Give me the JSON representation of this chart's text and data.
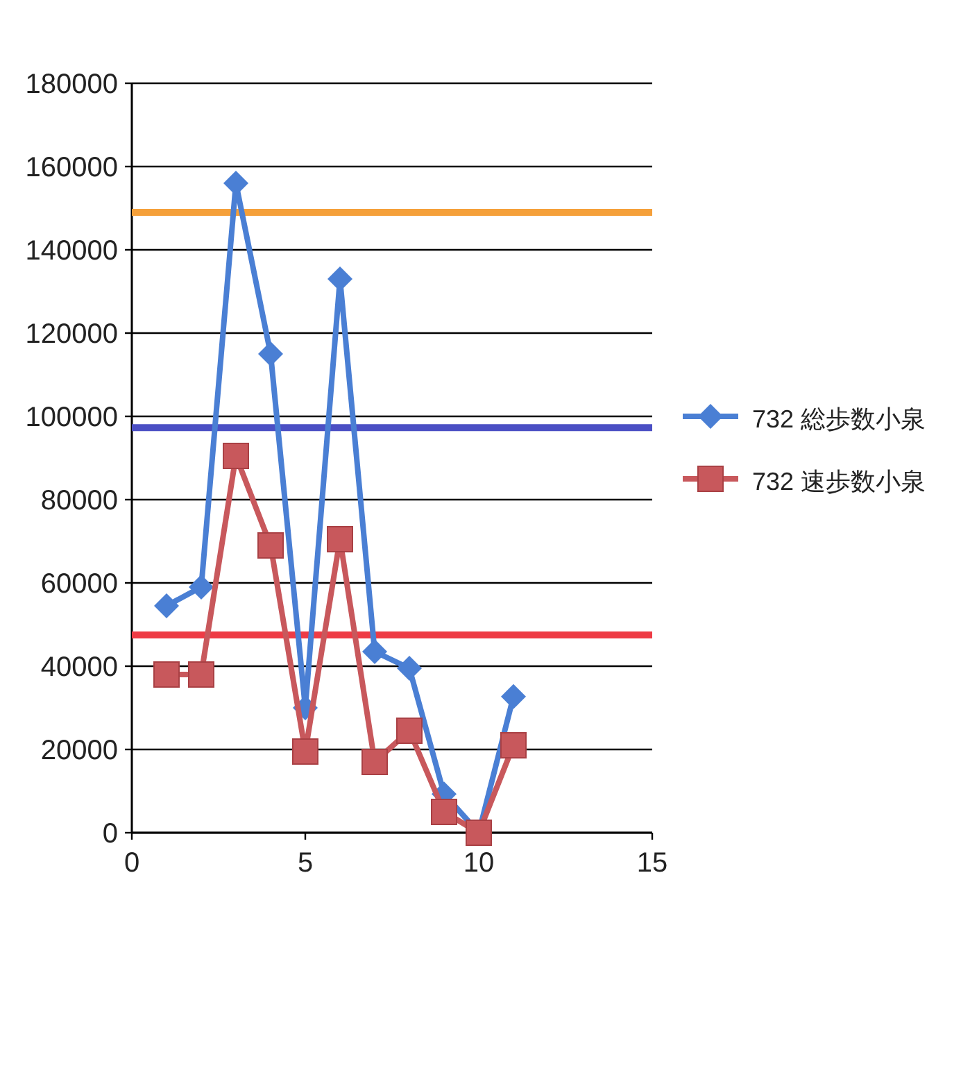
{
  "chart_data": {
    "type": "line",
    "x": [
      1,
      2,
      3,
      4,
      5,
      6,
      7,
      8,
      9,
      10,
      11
    ],
    "series": [
      {
        "name": "732 総歩数小泉",
        "color": "#4a7fd4",
        "marker": "diamond",
        "values": [
          54500,
          59000,
          156000,
          115000,
          30000,
          133000,
          43500,
          39500,
          9300,
          0,
          32700
        ]
      },
      {
        "name": "732 速歩数小泉",
        "color": "#c8585c",
        "marker": "square",
        "values": [
          38000,
          38000,
          90500,
          69000,
          19500,
          70500,
          17000,
          24500,
          5000,
          0,
          21000
        ]
      }
    ],
    "xlim": [
      0,
      15
    ],
    "xticks": [
      0,
      5,
      10,
      15
    ],
    "ylim": [
      0,
      180000
    ],
    "yticks": [
      0,
      20000,
      40000,
      60000,
      80000,
      100000,
      120000,
      140000,
      160000,
      180000
    ],
    "grid": "y",
    "legend": "right",
    "ref_lines": [
      {
        "axis": "y",
        "value": 149000,
        "color": "#f5a03a"
      },
      {
        "axis": "y",
        "value": 97300,
        "color": "#4b4fc4"
      },
      {
        "axis": "y",
        "value": 47500,
        "color": "#ee3b45"
      }
    ]
  }
}
